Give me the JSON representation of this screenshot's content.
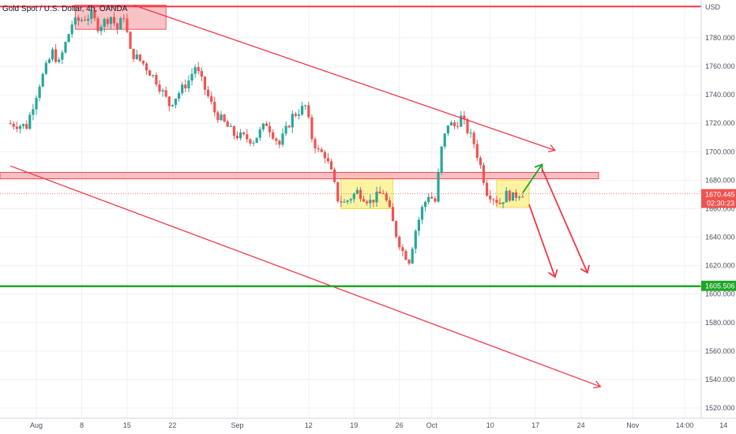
{
  "chart_data": {
    "type": "candlestick",
    "title": "Gold Spot / U.S. Dollar, 4h, OANDA",
    "currency": "USD",
    "y_ticks": [
      1520,
      1540,
      1560,
      1580,
      1600,
      1620,
      1640,
      1660,
      1680,
      1700,
      1720,
      1740,
      1760,
      1780
    ],
    "y_tick_labels": [
      "1520.000",
      "1540.000",
      "1560.000",
      "1580.000",
      "1600.000",
      "1620.000",
      "1640.000",
      "1660.000",
      "1680.000",
      "1700.000",
      "1720.000",
      "1740.000",
      "1760.000",
      "1780.000"
    ],
    "ylim": [
      1513,
      1803
    ],
    "x_labels": [
      "Aug",
      "8",
      "15",
      "22",
      "Sep",
      "12",
      "19",
      "26",
      "Oct",
      "10",
      "17",
      "24",
      "Nov",
      "14:00",
      "14"
    ],
    "x_label_day_offsets": [
      0,
      7,
      14,
      21,
      31,
      42,
      49,
      56,
      61,
      70,
      77,
      84,
      92,
      100,
      106
    ],
    "price_anchors": [
      {
        "day": -4,
        "price": 1720
      },
      {
        "day": -1,
        "price": 1718
      },
      {
        "day": 1,
        "price": 1748
      },
      {
        "day": 3,
        "price": 1770
      },
      {
        "day": 4,
        "price": 1762
      },
      {
        "day": 6,
        "price": 1790
      },
      {
        "day": 9,
        "price": 1796
      },
      {
        "day": 10,
        "price": 1788
      },
      {
        "day": 12,
        "price": 1795
      },
      {
        "day": 13,
        "price": 1786
      },
      {
        "day": 14,
        "price": 1796
      },
      {
        "day": 15,
        "price": 1770
      },
      {
        "day": 17,
        "price": 1762
      },
      {
        "day": 19,
        "price": 1750
      },
      {
        "day": 21,
        "price": 1733
      },
      {
        "day": 24,
        "price": 1750
      },
      {
        "day": 25,
        "price": 1760
      },
      {
        "day": 28,
        "price": 1728
      },
      {
        "day": 31,
        "price": 1712
      },
      {
        "day": 34,
        "price": 1708
      },
      {
        "day": 36,
        "price": 1720
      },
      {
        "day": 38,
        "price": 1705
      },
      {
        "day": 40,
        "price": 1725
      },
      {
        "day": 42,
        "price": 1732
      },
      {
        "day": 43,
        "price": 1710
      },
      {
        "day": 44,
        "price": 1700
      },
      {
        "day": 45,
        "price": 1698
      },
      {
        "day": 46,
        "price": 1685
      },
      {
        "day": 47,
        "price": 1667
      },
      {
        "day": 48,
        "price": 1664
      },
      {
        "day": 50,
        "price": 1672
      },
      {
        "day": 52,
        "price": 1665
      },
      {
        "day": 54,
        "price": 1672
      },
      {
        "day": 55,
        "price": 1658
      },
      {
        "day": 56,
        "price": 1642
      },
      {
        "day": 57,
        "price": 1630
      },
      {
        "day": 58,
        "price": 1624
      },
      {
        "day": 59,
        "price": 1645
      },
      {
        "day": 60,
        "price": 1660
      },
      {
        "day": 61,
        "price": 1670
      },
      {
        "day": 62,
        "price": 1665
      },
      {
        "day": 63,
        "price": 1702
      },
      {
        "day": 64,
        "price": 1720
      },
      {
        "day": 65,
        "price": 1718
      },
      {
        "day": 66,
        "price": 1724
      },
      {
        "day": 67,
        "price": 1715
      },
      {
        "day": 68,
        "price": 1706
      },
      {
        "day": 69,
        "price": 1690
      },
      {
        "day": 70,
        "price": 1672
      },
      {
        "day": 71,
        "price": 1668
      },
      {
        "day": 72,
        "price": 1664
      },
      {
        "day": 73,
        "price": 1670
      },
      {
        "day": 74,
        "price": 1668
      },
      {
        "day": 75,
        "price": 1671
      }
    ],
    "current_price": {
      "label": "1670.445",
      "countdown": "02:30:23",
      "price": 1670.445
    },
    "support_level": {
      "label": "1605.506",
      "price": 1605.506
    },
    "resistance_zone": {
      "price_low": 1681,
      "price_high": 1685.5
    },
    "top_line_price": 1802,
    "top_box": {
      "day_from": 6,
      "day_to": 20,
      "price_from": 1803,
      "price_to": 1786
    },
    "consolidation_boxes": [
      {
        "day_from": 47,
        "day_to": 55,
        "price_from": 1684,
        "price_to": 1660
      },
      {
        "day_from": 71,
        "day_to": 76,
        "price_from": 1680,
        "price_to": 1661
      }
    ],
    "trend_lines": [
      {
        "from": {
          "day": 15,
          "price": 1803
        },
        "to": {
          "day": 80,
          "price": 1701
        }
      },
      {
        "from": {
          "day": -4,
          "price": 1690
        },
        "to": {
          "day": 87,
          "price": 1535
        }
      }
    ],
    "projection_arrows": [
      {
        "color": "green",
        "from": {
          "day": 75,
          "price": 1671
        },
        "to": {
          "day": 78,
          "price": 1691
        }
      },
      {
        "color": "red",
        "from": {
          "day": 78,
          "price": 1688
        },
        "to": {
          "day": 85,
          "price": 1615
        }
      },
      {
        "color": "red",
        "from": {
          "day": 76,
          "price": 1663
        },
        "to": {
          "day": 80,
          "price": 1612
        }
      }
    ],
    "colors": {
      "up": "#26a69a",
      "down": "#ef5350",
      "line": "#f23645",
      "support": "#1ea527",
      "zone_fill": "#f7b9bd",
      "box_fill": "#fdf29a"
    }
  }
}
